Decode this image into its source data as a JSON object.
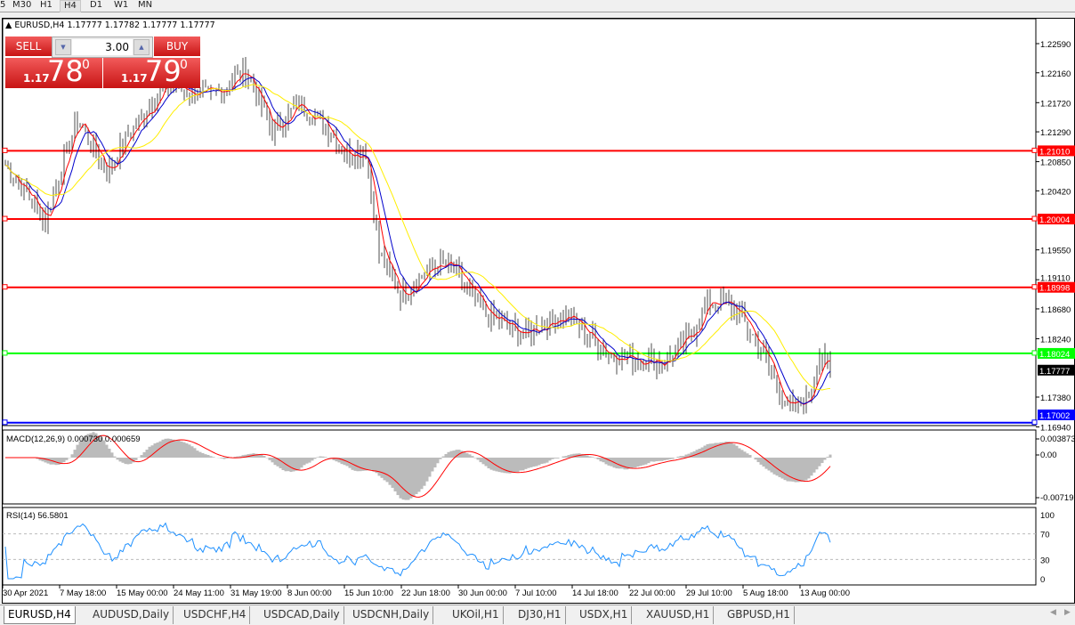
{
  "timeframes": [
    "5",
    "M30",
    "H1",
    "H4",
    "D1",
    "W1",
    "MN"
  ],
  "active_timeframe": "H4",
  "chart": {
    "title": "EURUSD,H4",
    "ohlc": "1.17777 1.17782 1.17777 1.17777",
    "current_price": "1.17777"
  },
  "trade_panel": {
    "sell_label": "SELL",
    "buy_label": "BUY",
    "volume": "3.00",
    "sell_prefix": "1.17",
    "sell_big": "78",
    "sell_sup": "0",
    "buy_prefix": "1.17",
    "buy_big": "79",
    "buy_sup": "0"
  },
  "price_axis": [
    "1.22590",
    "1.22160",
    "1.21720",
    "1.21290",
    "1.20850",
    "1.20420",
    "1.19550",
    "1.19110",
    "1.18680",
    "1.18240",
    "1.17380",
    "1.16940"
  ],
  "horizontal_lines": [
    {
      "price": "1.21010",
      "color": "#ff0000"
    },
    {
      "price": "1.20004",
      "color": "#ff0000"
    },
    {
      "price": "1.18998",
      "color": "#ff0000"
    },
    {
      "price": "1.18024",
      "color": "#00ff00"
    },
    {
      "price": "1.17002",
      "color": "#0000ff"
    }
  ],
  "price_path": [
    [
      0,
      1.208
    ],
    [
      15,
      1.2
    ],
    [
      27,
      1.215
    ],
    [
      38,
      1.207
    ],
    [
      47,
      1.213
    ],
    [
      60,
      1.22
    ],
    [
      77,
      1.218
    ],
    [
      90,
      1.222
    ],
    [
      100,
      1.213
    ],
    [
      110,
      1.217
    ],
    [
      120,
      1.214
    ],
    [
      127,
      1.21
    ],
    [
      135,
      1.21
    ],
    [
      140,
      1.195
    ],
    [
      148,
      1.189
    ],
    [
      160,
      1.193
    ],
    [
      167,
      1.193
    ],
    [
      180,
      1.186
    ],
    [
      193,
      1.183
    ],
    [
      210,
      1.186
    ],
    [
      227,
      1.18
    ],
    [
      247,
      1.179
    ],
    [
      257,
      1.183
    ],
    [
      263,
      1.188
    ],
    [
      273,
      1.187
    ],
    [
      283,
      1.181
    ],
    [
      293,
      1.172
    ],
    [
      300,
      1.173
    ],
    [
      305,
      1.18
    ],
    [
      309,
      1.1777
    ]
  ],
  "macd": {
    "label": "MACD(12,26,9) 0.000730 0.000659",
    "axis": [
      "0.003873",
      "0.00",
      "-0.007195"
    ]
  },
  "rsi": {
    "label": "RSI(14) 56.5801",
    "axis": [
      "100",
      "70",
      "30",
      "0"
    ]
  },
  "time_axis": [
    "30 Apr 2021",
    "7 May 18:00",
    "15 May 00:00",
    "24 May 11:00",
    "31 May 19:00",
    "8 Jun 00:00",
    "15 Jun 10:00",
    "22 Jun 18:00",
    "30 Jun 00:00",
    "7 Jul 10:00",
    "14 Jul 18:00",
    "22 Jul 00:00",
    "29 Jul 10:00",
    "5 Aug 18:00",
    "13 Aug 00:00"
  ],
  "tabs": [
    "EURUSD,H4",
    "AUDUSD,Daily",
    "USDCHF,H4",
    "USDCAD,Daily",
    "USDCNH,Daily",
    "UKOil,H1",
    "DJ30,H1",
    "USDX,H1",
    "XAUUSD,H1",
    "GBPUSD,H1"
  ],
  "active_tab": "EURUSD,H4"
}
